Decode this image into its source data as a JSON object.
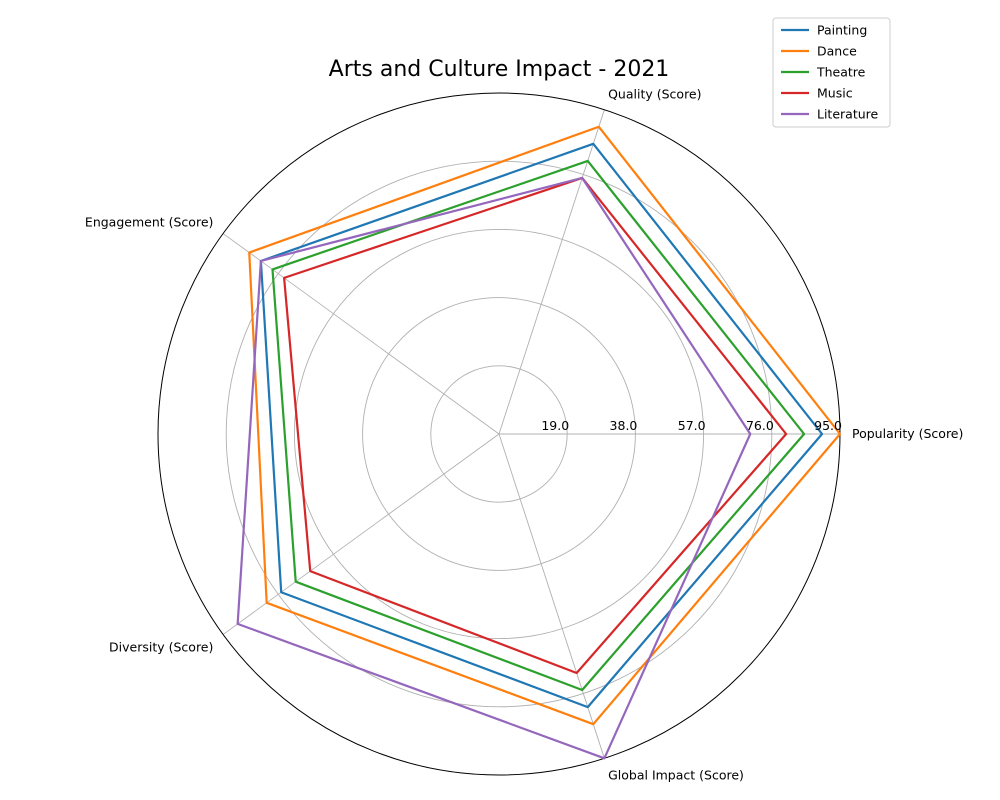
{
  "chart_data": {
    "type": "radar",
    "title": "Arts and Culture Impact - 2021",
    "axes": [
      "Popularity (Score)",
      "Quality (Score)",
      "Engagement (Score)",
      "Diversity (Score)",
      "Global Impact (Score)"
    ],
    "rlim": [
      0,
      95
    ],
    "ring_ticks": [
      19.0,
      38.0,
      57.0,
      76.0,
      95.0
    ],
    "ring_tick_labels": [
      "19.0",
      "38.0",
      "57.0",
      "76.0",
      "95.0"
    ],
    "grid": true,
    "legend_position": "top-right",
    "series": [
      {
        "name": "Painting",
        "color": "#1f77b4",
        "values": [
          90,
          85,
          82,
          75,
          80
        ]
      },
      {
        "name": "Dance",
        "color": "#ff7f0e",
        "values": [
          95,
          90,
          86,
          80,
          85
        ]
      },
      {
        "name": "Theatre",
        "color": "#2ca02c",
        "values": [
          85,
          80,
          78,
          70,
          75
        ]
      },
      {
        "name": "Music",
        "color": "#d62728",
        "values": [
          80,
          75,
          74,
          65,
          70
        ]
      },
      {
        "name": "Literature",
        "color": "#9467bd",
        "values": [
          70,
          75,
          82,
          90,
          95
        ]
      }
    ]
  }
}
